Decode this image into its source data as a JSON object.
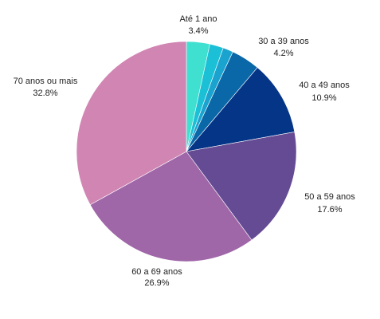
{
  "chart_data": {
    "type": "pie",
    "slices": [
      {
        "label": "Até 1 ano",
        "value": 3.4,
        "value_text": "3.4%",
        "color": "#40E0D0"
      },
      {
        "label": "",
        "value": 2.0,
        "value_text": "",
        "color": "#1CC0D6"
      },
      {
        "label": "",
        "value": 1.5,
        "value_text": "",
        "color": "#1AA3CF"
      },
      {
        "label": "30 a 39 anos",
        "value": 4.2,
        "value_text": "4.2%",
        "color": "#0A67A8"
      },
      {
        "label": "40 a 49 anos",
        "value": 10.9,
        "value_text": "10.9%",
        "color": "#053587"
      },
      {
        "label": "50 a 59 anos",
        "value": 17.6,
        "value_text": "17.6%",
        "color": "#654B94"
      },
      {
        "label": "60 a 69 anos",
        "value": 26.9,
        "value_text": "26.9%",
        "color": "#9F66A8"
      },
      {
        "label": "70 anos ou mais",
        "value": 32.8,
        "value_text": "32.8%",
        "color": "#D185B3"
      }
    ],
    "start": "top",
    "direction": "clockwise",
    "legend": "none"
  }
}
